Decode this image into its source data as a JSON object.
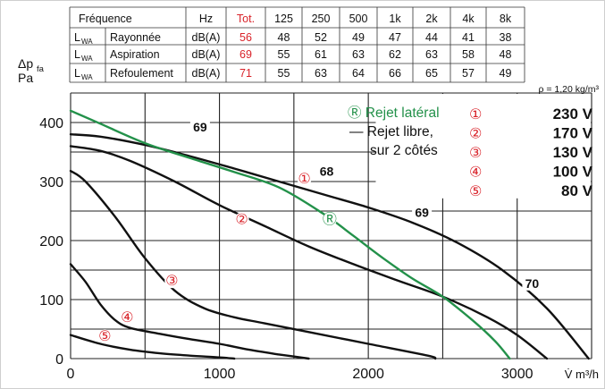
{
  "table": {
    "header": [
      "Fréquence",
      "",
      "Hz",
      "Tot.",
      "125",
      "250",
      "500",
      "1k",
      "2k",
      "4k",
      "8k"
    ],
    "rows": [
      {
        "sym": "L",
        "sub": "WA",
        "label": "Rayonnée",
        "unit": "dB(A)",
        "values": [
          "56",
          "48",
          "52",
          "49",
          "47",
          "44",
          "41",
          "38"
        ]
      },
      {
        "sym": "L",
        "sub": "WA",
        "label": "Aspiration",
        "unit": "dB(A)",
        "values": [
          "69",
          "55",
          "61",
          "63",
          "62",
          "63",
          "58",
          "48"
        ]
      },
      {
        "sym": "L",
        "sub": "WA",
        "label": "Refoulement",
        "unit": "dB(A)",
        "values": [
          "71",
          "55",
          "63",
          "64",
          "66",
          "65",
          "57",
          "49"
        ]
      }
    ]
  },
  "colors": {
    "red": "#d9232a",
    "green": "#23914a",
    "black": "#111111",
    "grid": "#222222"
  },
  "chart_data": {
    "type": "line",
    "ylabel_sym": "Δp",
    "ylabel_sub": "fa",
    "ylabel_unit": "Pa",
    "xlabel": "V̇ m³/h",
    "density_note": "ρ = 1,20 kg/m³",
    "xlim": [
      0,
      3500
    ],
    "ylim": [
      0,
      450
    ],
    "x_ticks": [
      0,
      1000,
      2000,
      3000
    ],
    "y_ticks": [
      0,
      100,
      200,
      300,
      400
    ],
    "grid": true,
    "legend": {
      "green_label": "Ⓡ Rejet latéral",
      "black_label_1": "— Rejet libre,",
      "black_label_2": "sur 2 côtés",
      "speeds": [
        {
          "mark": "①",
          "label": "230 V"
        },
        {
          "mark": "②",
          "label": "170 V"
        },
        {
          "mark": "③",
          "label": "130 V"
        },
        {
          "mark": "④",
          "label": "100 V"
        },
        {
          "mark": "⑤",
          "label": "80 V"
        }
      ]
    },
    "series": [
      {
        "id": "230v",
        "color": "black",
        "x": [
          0,
          200,
          500,
          800,
          1100,
          1400,
          1700,
          2000,
          2300,
          2600,
          2900,
          3200,
          3480
        ],
        "y": [
          380,
          376,
          362,
          343,
          322,
          300,
          278,
          256,
          230,
          196,
          150,
          85,
          0
        ]
      },
      {
        "id": "170v",
        "color": "black",
        "x": [
          0,
          200,
          400,
          700,
          1000,
          1300,
          1600,
          1900,
          2200,
          2500,
          2800,
          3000,
          3200
        ],
        "y": [
          360,
          352,
          335,
          300,
          260,
          225,
          190,
          160,
          132,
          105,
          70,
          40,
          0
        ]
      },
      {
        "id": "130v",
        "color": "black",
        "x": [
          0,
          100,
          300,
          500,
          700,
          900,
          1100,
          1300,
          1600,
          2000,
          2400,
          2450
        ],
        "y": [
          318,
          300,
          240,
          170,
          115,
          85,
          70,
          60,
          45,
          25,
          5,
          0
        ]
      },
      {
        "id": "100v",
        "color": "black",
        "x": [
          0,
          100,
          200,
          300,
          400,
          600,
          800,
          1000,
          1200,
          1400,
          1600
        ],
        "y": [
          160,
          130,
          92,
          65,
          52,
          42,
          33,
          25,
          15,
          7,
          0
        ]
      },
      {
        "id": "80v",
        "color": "black",
        "x": [
          0,
          200,
          400,
          600,
          800,
          1000,
          1100
        ],
        "y": [
          40,
          25,
          15,
          9,
          5,
          2,
          0
        ]
      },
      {
        "id": "lateral",
        "color": "green",
        "x": [
          0,
          200,
          500,
          800,
          1100,
          1400,
          1700,
          1900,
          2100,
          2300,
          2500,
          2700,
          2850,
          2950
        ],
        "y": [
          420,
          398,
          365,
          340,
          316,
          290,
          245,
          208,
          170,
          135,
          105,
          65,
          30,
          0
        ]
      }
    ],
    "point_labels": [
      {
        "text": "69",
        "x": 870,
        "y": 385
      },
      {
        "text": "68",
        "x": 1720,
        "y": 310
      },
      {
        "text": "69",
        "x": 2360,
        "y": 240
      },
      {
        "text": "70",
        "x": 3100,
        "y": 120
      }
    ],
    "curve_marks": [
      {
        "text": "①",
        "x": 1570,
        "y": 297,
        "color": "red"
      },
      {
        "text": "②",
        "x": 1150,
        "y": 228,
        "color": "red"
      },
      {
        "text": "Ⓡ",
        "x": 1740,
        "y": 228,
        "color": "green"
      },
      {
        "text": "③",
        "x": 680,
        "y": 124,
        "color": "red"
      },
      {
        "text": "④",
        "x": 380,
        "y": 62,
        "color": "red"
      },
      {
        "text": "⑤",
        "x": 230,
        "y": 30,
        "color": "red"
      }
    ]
  }
}
